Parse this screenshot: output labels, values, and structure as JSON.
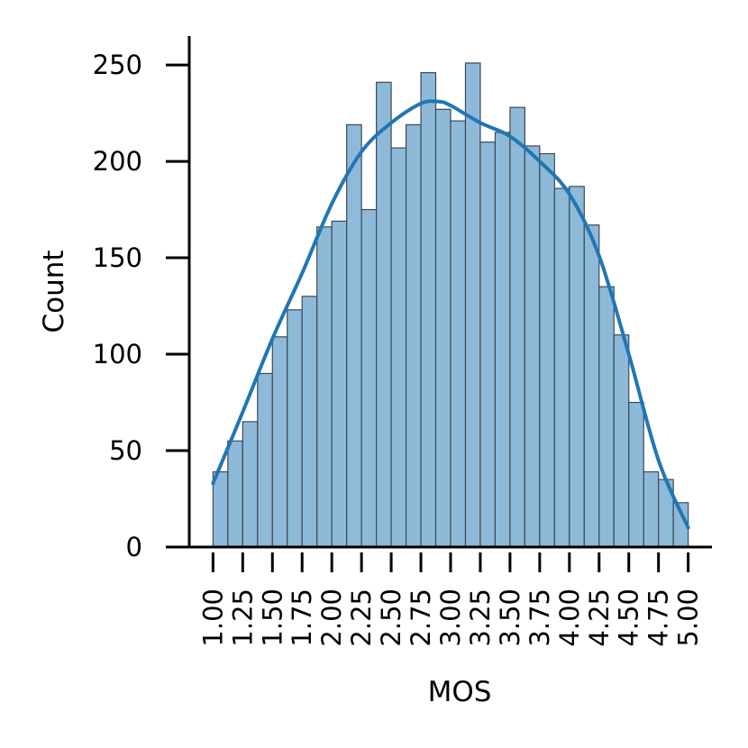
{
  "chart_data": {
    "type": "bar",
    "xlabel": "MOS",
    "ylabel": "Count",
    "xlim": [
      0.8,
      5.2
    ],
    "ylim": [
      0,
      265
    ],
    "bin_start": 1.0,
    "bin_width": 0.125,
    "counts": [
      39,
      55,
      65,
      90,
      109,
      123,
      130,
      166,
      169,
      219,
      175,
      241,
      207,
      219,
      246,
      227,
      221,
      251,
      210,
      215,
      228,
      208,
      204,
      186,
      187,
      167,
      135,
      110,
      75,
      39,
      35,
      23
    ],
    "x_ticks": [
      "1.00",
      "1.25",
      "1.50",
      "1.75",
      "2.00",
      "2.25",
      "2.50",
      "2.75",
      "3.00",
      "3.25",
      "3.50",
      "3.75",
      "4.00",
      "4.25",
      "4.50",
      "4.75",
      "5.00"
    ],
    "x_tick_values": [
      1.0,
      1.25,
      1.5,
      1.75,
      2.0,
      2.25,
      2.5,
      2.75,
      3.0,
      3.25,
      3.5,
      3.75,
      4.0,
      4.25,
      4.5,
      4.75,
      5.0
    ],
    "y_ticks": [
      0,
      50,
      100,
      150,
      200,
      250
    ],
    "kde": {
      "x": [
        1.0,
        1.25,
        1.5,
        1.75,
        2.0,
        2.25,
        2.5,
        2.75,
        2.9,
        3.0,
        3.25,
        3.5,
        3.75,
        4.0,
        4.25,
        4.5,
        4.75,
        5.0
      ],
      "y": [
        33,
        70,
        108,
        142,
        178,
        205,
        220,
        230,
        231,
        229,
        220,
        213,
        200,
        183,
        151,
        100,
        45,
        10
      ]
    },
    "grid": false,
    "colors": {
      "bar_fill": "#8fb9d8",
      "bar_edge": "#3a4a57",
      "kde_line": "#1f77b4",
      "axis": "#000000"
    }
  }
}
